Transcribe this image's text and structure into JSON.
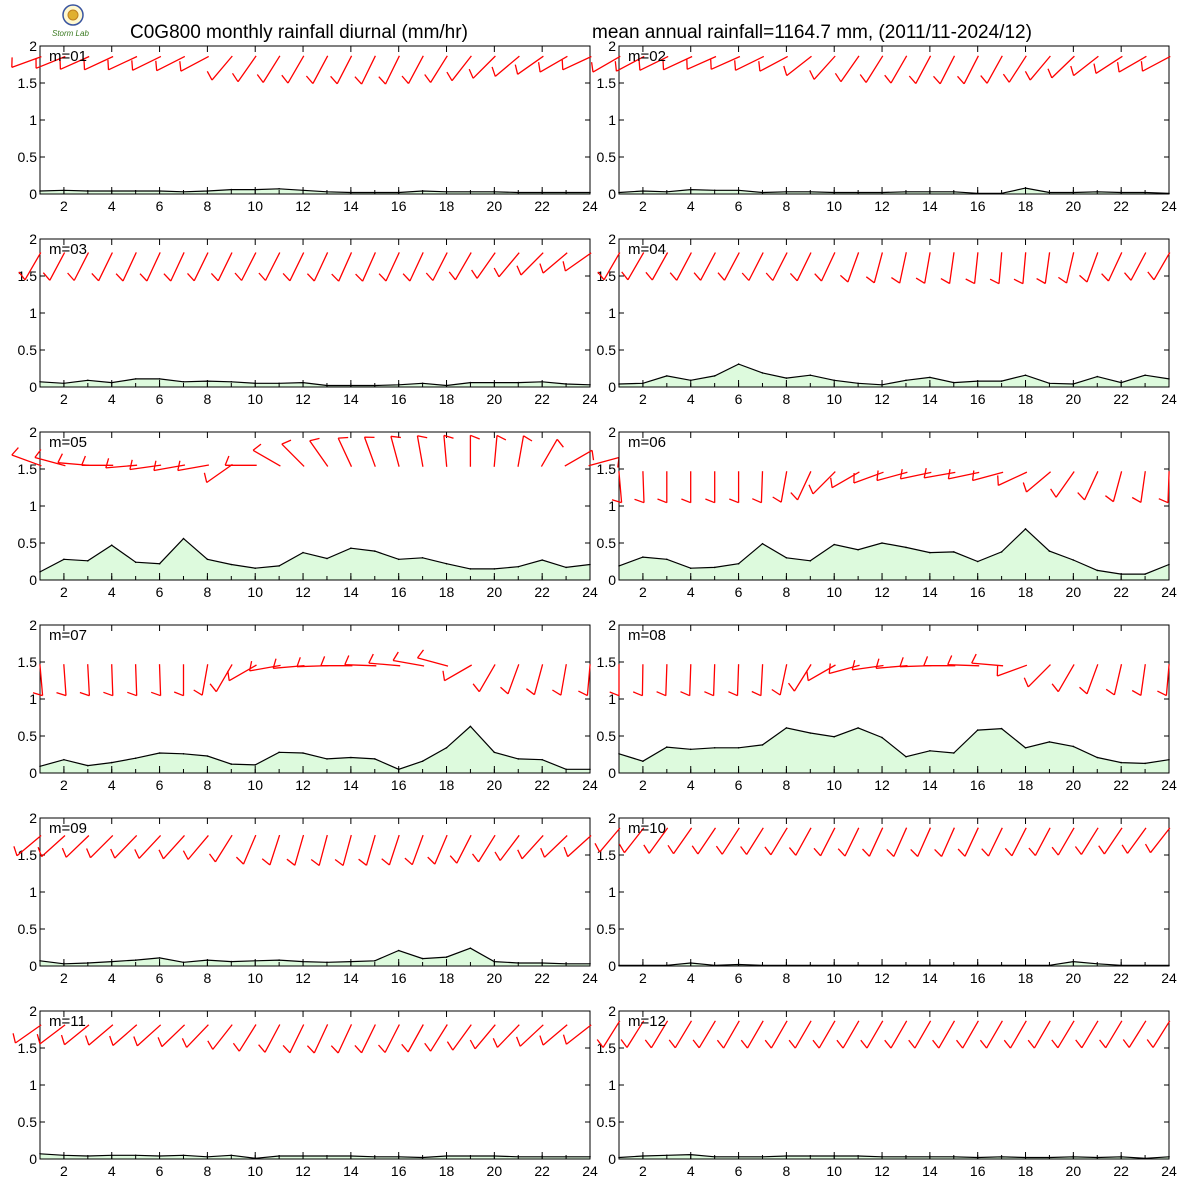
{
  "title_left": "C0G800 monthly rainfall diurnal (mm/hr)",
  "title_right": "mean annual rainfall=1164.7 mm, (2011/11-2024/12)",
  "logo_text": "Storm Lab",
  "colors": {
    "line": "#000000",
    "fill": "#ddfadd",
    "barb": "#ff0000",
    "frame": "#000000"
  },
  "chart_data": {
    "type": "area",
    "layout": "6x2 small multiples",
    "x": [
      1,
      2,
      3,
      4,
      5,
      6,
      7,
      8,
      9,
      10,
      11,
      12,
      13,
      14,
      15,
      16,
      17,
      18,
      19,
      20,
      21,
      22,
      23,
      24
    ],
    "xticks": [
      "2",
      "4",
      "6",
      "8",
      "10",
      "12",
      "14",
      "16",
      "18",
      "20",
      "22",
      "24"
    ],
    "xlim": [
      1,
      24
    ],
    "yticks": [
      "0",
      "0.5",
      "1",
      "1.5",
      "2"
    ],
    "ylim": [
      0,
      2
    ],
    "panels": [
      {
        "label": "m=01",
        "values": [
          0.04,
          0.05,
          0.04,
          0.04,
          0.04,
          0.04,
          0.03,
          0.04,
          0.06,
          0.06,
          0.07,
          0.05,
          0.03,
          0.02,
          0.02,
          0.02,
          0.04,
          0.03,
          0.03,
          0.03,
          0.02,
          0.02,
          0.02,
          0.02
        ],
        "barb_y": 1.85,
        "barbs": [
          250,
          248,
          246,
          245,
          245,
          244,
          243,
          242,
          220,
          215,
          212,
          210,
          208,
          207,
          206,
          206,
          208,
          212,
          218,
          225,
          230,
          235,
          240,
          245
        ]
      },
      {
        "label": "m=02",
        "values": [
          0.02,
          0.04,
          0.03,
          0.06,
          0.05,
          0.05,
          0.02,
          0.03,
          0.03,
          0.02,
          0.02,
          0.02,
          0.03,
          0.03,
          0.03,
          0.01,
          0.01,
          0.08,
          0.02,
          0.02,
          0.03,
          0.02,
          0.02,
          0.01
        ],
        "barb_y": 1.85,
        "barbs": [
          240,
          242,
          244,
          245,
          246,
          246,
          244,
          242,
          232,
          222,
          215,
          212,
          210,
          208,
          207,
          207,
          209,
          213,
          220,
          226,
          232,
          237,
          240,
          242
        ]
      },
      {
        "label": "m=03",
        "values": [
          0.07,
          0.05,
          0.09,
          0.06,
          0.11,
          0.11,
          0.07,
          0.08,
          0.07,
          0.05,
          0.05,
          0.06,
          0.02,
          0.02,
          0.02,
          0.03,
          0.05,
          0.02,
          0.06,
          0.06,
          0.06,
          0.07,
          0.04,
          0.03
        ],
        "barb_y": 1.8,
        "barbs": [
          210,
          208,
          207,
          206,
          205,
          205,
          205,
          206,
          206,
          207,
          207,
          206,
          205,
          204,
          204,
          205,
          205,
          207,
          210,
          215,
          220,
          225,
          230,
          235
        ]
      },
      {
        "label": "m=04",
        "values": [
          0.04,
          0.05,
          0.15,
          0.09,
          0.15,
          0.31,
          0.19,
          0.12,
          0.16,
          0.09,
          0.05,
          0.03,
          0.09,
          0.13,
          0.06,
          0.08,
          0.08,
          0.16,
          0.05,
          0.04,
          0.14,
          0.06,
          0.16,
          0.11
        ],
        "barb_y": 1.8,
        "barbs": [
          210,
          210,
          209,
          208,
          208,
          208,
          207,
          207,
          206,
          205,
          200,
          195,
          192,
          190,
          188,
          186,
          185,
          185,
          188,
          193,
          200,
          205,
          208,
          210
        ]
      },
      {
        "label": "m=05",
        "values": [
          0.11,
          0.28,
          0.26,
          0.47,
          0.24,
          0.22,
          0.56,
          0.28,
          0.21,
          0.16,
          0.19,
          0.37,
          0.29,
          0.43,
          0.39,
          0.28,
          0.3,
          0.22,
          0.15,
          0.15,
          0.18,
          0.27,
          0.17,
          0.21
        ],
        "barb_y": 1.55,
        "barbs": [
          290,
          285,
          275,
          270,
          265,
          262,
          260,
          260,
          235,
          270,
          300,
          315,
          325,
          335,
          340,
          345,
          350,
          355,
          0,
          5,
          10,
          30,
          60,
          75
        ]
      },
      {
        "label": "m=06",
        "values": [
          0.19,
          0.31,
          0.28,
          0.16,
          0.17,
          0.22,
          0.49,
          0.3,
          0.26,
          0.48,
          0.41,
          0.5,
          0.44,
          0.37,
          0.38,
          0.25,
          0.38,
          0.69,
          0.39,
          0.27,
          0.13,
          0.08,
          0.08,
          0.21
        ],
        "barb_y": 1.45,
        "barbs": [
          175,
          178,
          180,
          180,
          180,
          180,
          182,
          190,
          205,
          225,
          240,
          250,
          255,
          258,
          260,
          258,
          255,
          245,
          230,
          215,
          205,
          195,
          188,
          182
        ]
      },
      {
        "label": "m=07",
        "values": [
          0.09,
          0.18,
          0.1,
          0.14,
          0.2,
          0.27,
          0.26,
          0.23,
          0.12,
          0.11,
          0.28,
          0.27,
          0.19,
          0.21,
          0.19,
          0.05,
          0.16,
          0.34,
          0.63,
          0.28,
          0.19,
          0.18,
          0.05,
          0.05
        ],
        "barb_y": 1.45,
        "barbs": [
          175,
          176,
          177,
          178,
          178,
          178,
          180,
          190,
          210,
          240,
          260,
          265,
          268,
          270,
          272,
          275,
          280,
          285,
          240,
          210,
          200,
          195,
          190,
          185
        ]
      },
      {
        "label": "m=08",
        "values": [
          0.26,
          0.16,
          0.35,
          0.32,
          0.34,
          0.34,
          0.38,
          0.61,
          0.54,
          0.49,
          0.61,
          0.48,
          0.22,
          0.3,
          0.27,
          0.58,
          0.6,
          0.34,
          0.42,
          0.36,
          0.21,
          0.14,
          0.13,
          0.18
        ],
        "barb_y": 1.45,
        "barbs": [
          180,
          181,
          182,
          182,
          182,
          182,
          183,
          192,
          212,
          240,
          255,
          262,
          265,
          268,
          270,
          272,
          275,
          250,
          225,
          210,
          200,
          193,
          188,
          185
        ]
      },
      {
        "label": "m=09",
        "values": [
          0.07,
          0.03,
          0.04,
          0.06,
          0.08,
          0.11,
          0.05,
          0.08,
          0.06,
          0.07,
          0.08,
          0.06,
          0.05,
          0.06,
          0.07,
          0.21,
          0.1,
          0.12,
          0.24,
          0.06,
          0.04,
          0.04,
          0.03,
          0.03
        ],
        "barb_y": 1.75,
        "barbs": [
          230,
          228,
          226,
          225,
          224,
          223,
          222,
          220,
          212,
          203,
          198,
          196,
          195,
          195,
          196,
          198,
          200,
          203,
          207,
          212,
          217,
          222,
          226,
          228
        ]
      },
      {
        "label": "m=10",
        "values": [
          0.01,
          0.01,
          0.01,
          0.04,
          0.01,
          0.02,
          0.01,
          0.01,
          0.01,
          0.01,
          0.01,
          0.01,
          0.01,
          0.01,
          0.01,
          0.01,
          0.01,
          0.01,
          0.01,
          0.06,
          0.03,
          0.01,
          0.01,
          0.01
        ],
        "barb_y": 1.85,
        "barbs": [
          220,
          218,
          216,
          215,
          214,
          213,
          212,
          211,
          209,
          207,
          206,
          205,
          204,
          204,
          204,
          205,
          206,
          207,
          208,
          210,
          212,
          214,
          216,
          218
        ]
      },
      {
        "label": "m=11",
        "values": [
          0.07,
          0.05,
          0.04,
          0.05,
          0.05,
          0.04,
          0.05,
          0.03,
          0.05,
          0.01,
          0.04,
          0.04,
          0.04,
          0.04,
          0.03,
          0.03,
          0.02,
          0.04,
          0.04,
          0.04,
          0.03,
          0.03,
          0.03,
          0.03
        ],
        "barb_y": 1.8,
        "barbs": [
          235,
          233,
          231,
          230,
          229,
          228,
          226,
          224,
          218,
          212,
          208,
          206,
          205,
          205,
          206,
          207,
          209,
          212,
          216,
          220,
          224,
          227,
          230,
          232
        ]
      },
      {
        "label": "m=12",
        "values": [
          0.02,
          0.04,
          0.05,
          0.06,
          0.03,
          0.03,
          0.03,
          0.04,
          0.04,
          0.04,
          0.04,
          0.03,
          0.03,
          0.03,
          0.03,
          0.02,
          0.03,
          0.02,
          0.02,
          0.03,
          0.02,
          0.03,
          0.01,
          0.03
        ],
        "barb_y": 1.85,
        "barbs": [
          212,
          212,
          211,
          211,
          211,
          210,
          210,
          210,
          210,
          210,
          210,
          210,
          210,
          210,
          210,
          210,
          210,
          210,
          210,
          211,
          211,
          211,
          212,
          212
        ]
      }
    ]
  }
}
